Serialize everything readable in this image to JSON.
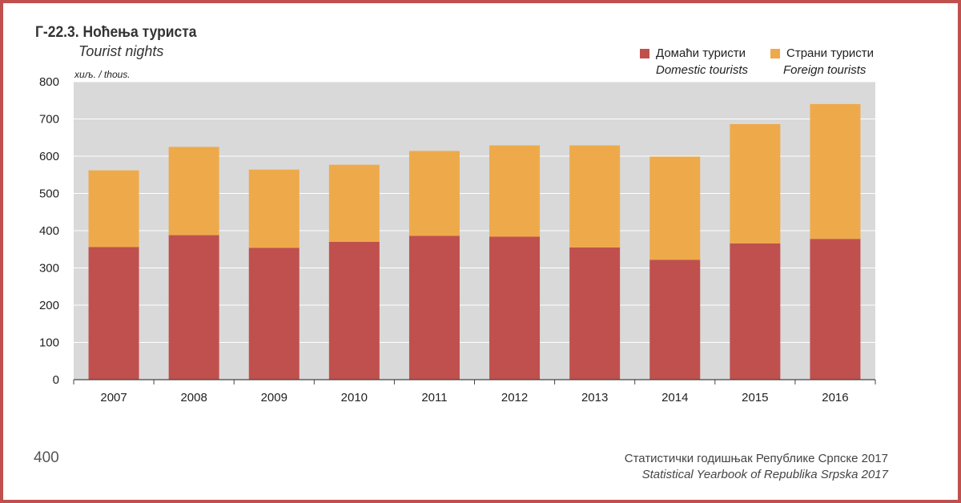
{
  "chart_data": {
    "type": "bar",
    "stacked": true,
    "title": "Г-22.3. Ноћења туриста",
    "subtitle": "Tourist nights",
    "unit_label": "хиљ. / thous.",
    "categories": [
      "2007",
      "2008",
      "2009",
      "2010",
      "2011",
      "2012",
      "2013",
      "2014",
      "2015",
      "2016"
    ],
    "series": [
      {
        "name": "Домаћи туристи",
        "name_en": "Domestic tourists",
        "color": "#c0504d",
        "values": [
          356,
          388,
          354,
          370,
          386,
          384,
          355,
          322,
          366,
          378
        ]
      },
      {
        "name": "Страни туристи",
        "name_en": "Foreign tourists",
        "color": "#eeaa4a",
        "values": [
          206,
          237,
          210,
          207,
          228,
          245,
          274,
          277,
          320,
          362
        ]
      }
    ],
    "ylim": [
      0,
      800
    ],
    "yticks": [
      0,
      100,
      200,
      300,
      400,
      500,
      600,
      700,
      800
    ],
    "grid": true,
    "plot_background": "#d9d9d9",
    "legend_position": "top-right"
  },
  "page": {
    "number": "400",
    "source_sr": "Статистички годишњак Републике Српске 2017",
    "source_en": "Statistical Yearbook of Republika Srpska 2017",
    "frame_color": "#c0504d"
  }
}
